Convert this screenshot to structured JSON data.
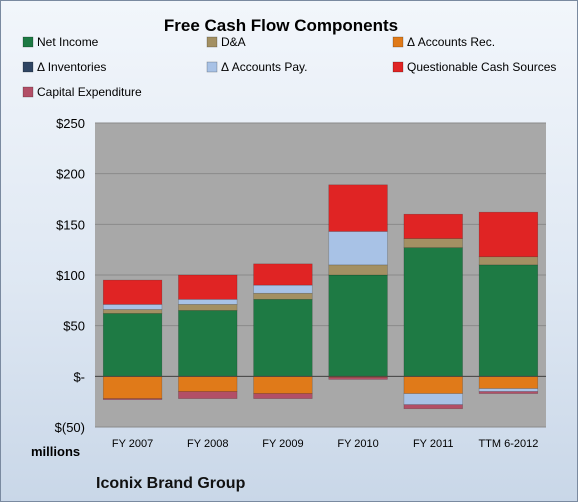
{
  "chart_data": {
    "type": "bar",
    "title": "Free Cash Flow Components",
    "units_label": "millions",
    "company": "Iconix Brand Group",
    "categories": [
      "FY 2007",
      "FY 2008",
      "FY 2009",
      "FY 2010",
      "FY 2011",
      "TTM 6-2012"
    ],
    "y_tick_labels": [
      "$250",
      "$200",
      "$150",
      "$100",
      "$50",
      "$-",
      "$(50)"
    ],
    "ylim": [
      -50,
      250
    ],
    "grid": true,
    "legend_position": "top",
    "stacked": true,
    "series": [
      {
        "name": "Net Income",
        "color": "#1e7a44",
        "values": [
          62,
          65,
          76,
          100,
          127,
          110
        ]
      },
      {
        "name": "D&A",
        "color": "#a39063",
        "values": [
          4,
          6,
          6,
          10,
          9,
          8
        ]
      },
      {
        "name": "Δ Accounts Rec.",
        "color": "#e07a19",
        "values": [
          -22,
          -15,
          -17,
          -1,
          -17,
          -12
        ]
      },
      {
        "name": "Δ Inventories",
        "color": "#2f4563",
        "values": [
          0,
          0,
          0,
          0,
          0,
          0
        ]
      },
      {
        "name": "Δ Accounts Pay.",
        "color": "#a8c2e6",
        "values": [
          5,
          5,
          8,
          33,
          -11,
          -3
        ]
      },
      {
        "name": "Questionable Cash Sources",
        "color": "#e02424",
        "values": [
          24,
          24,
          21,
          46,
          24,
          44
        ]
      },
      {
        "name": "Capital Expenditure",
        "color": "#b24f67",
        "values": [
          -1,
          -7,
          -5,
          -2,
          -4,
          -2
        ]
      }
    ]
  }
}
